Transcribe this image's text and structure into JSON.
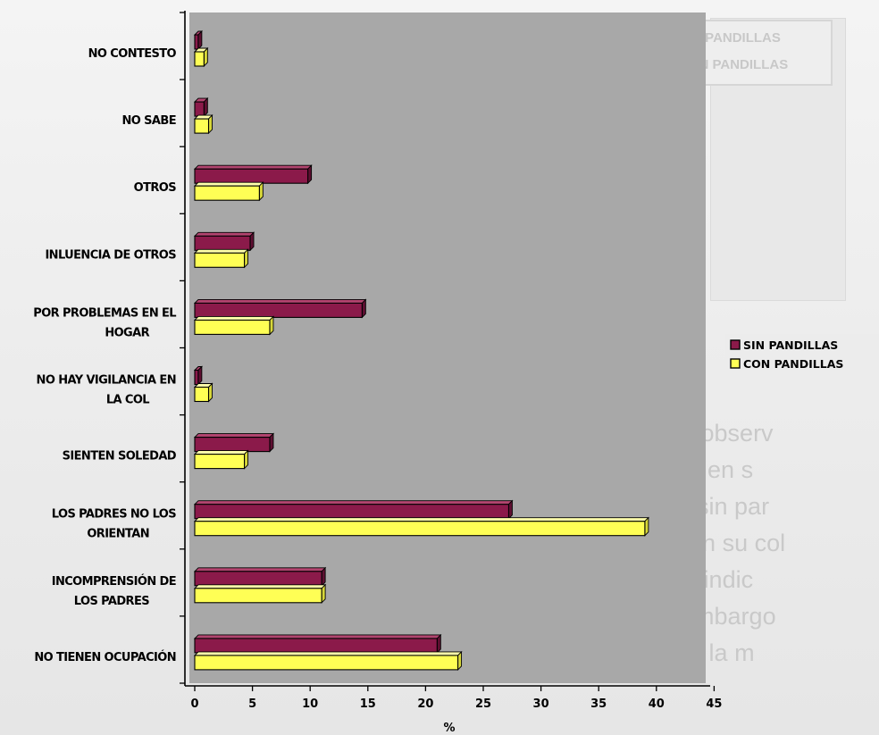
{
  "chart_data": {
    "type": "bar",
    "orientation": "horizontal",
    "categories": [
      "NO CONTESTO",
      "NO SABE",
      "OTROS",
      "INLUENCIA DE OTROS",
      "POR PROBLEMAS EN EL HOGAR",
      "NO HAY VIGILANCIA EN LA COL",
      "SIENTEN SOLEDAD",
      "LOS PADRES NO LOS ORIENTAN",
      "INCOMPRENSIÓN DE LOS PADRES",
      "NO TIENEN OCUPACIÓN"
    ],
    "category_lines": [
      [
        "NO CONTESTO"
      ],
      [
        "NO SABE"
      ],
      [
        "OTROS"
      ],
      [
        "INLUENCIA DE OTROS"
      ],
      [
        "POR PROBLEMAS EN EL",
        "HOGAR"
      ],
      [
        "NO HAY VIGILANCIA EN",
        "LA COL"
      ],
      [
        "SIENTEN SOLEDAD"
      ],
      [
        "LOS PADRES NO LOS",
        "ORIENTAN"
      ],
      [
        "INCOMPRENSIÓN DE",
        "LOS PADRES"
      ],
      [
        "NO TIENEN OCUPACIÓN"
      ]
    ],
    "series": [
      {
        "name": "SIN PANDILLAS",
        "color": "#8b1a4a",
        "values": [
          0.3,
          0.8,
          9.8,
          4.8,
          14.5,
          0.3,
          6.5,
          27.2,
          11.0,
          21.0
        ]
      },
      {
        "name": "CON PANDILLAS",
        "color": "#ffff55",
        "values": [
          0.8,
          1.2,
          5.6,
          4.3,
          6.5,
          1.2,
          4.3,
          39.0,
          11.0,
          22.8
        ]
      }
    ],
    "xticks": [
      0,
      5,
      10,
      15,
      20,
      25,
      30,
      35,
      40,
      45
    ],
    "xlim": [
      0,
      45
    ],
    "xlabel": "%",
    "title": "",
    "ylabel": "",
    "legend_position": "right",
    "plot_background": "#a3a3a3"
  },
  "background": {
    "ghost_legend": [
      "SIN PANDILLAS",
      "CON PANDILLAS"
    ],
    "paragraph_fragments": [
      "s, se observ",
      "éstas en s",
      "omo sin par",
      "hay en su col",
      "",
      "te un indic",
      "sin embargo",
      "dos a la m"
    ]
  }
}
